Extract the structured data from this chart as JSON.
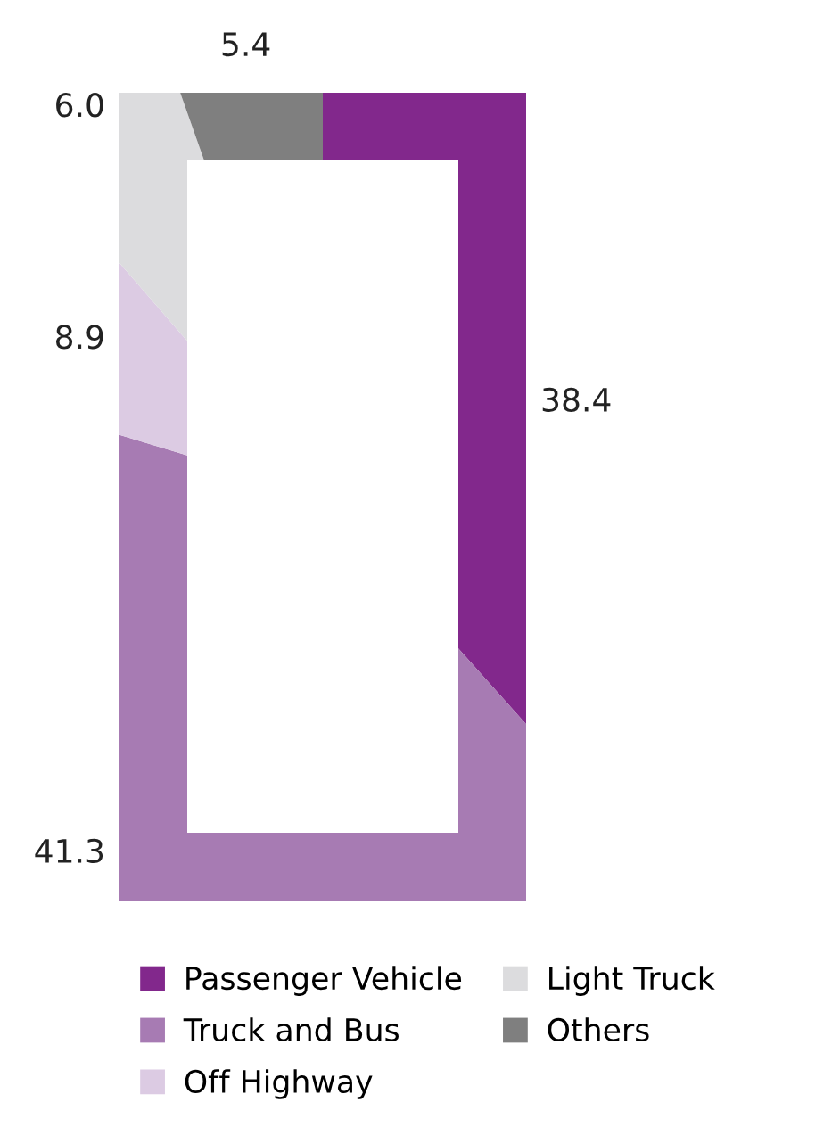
{
  "chart_data": {
    "type": "donut",
    "categories": [
      "Passenger Vehicle",
      "Truck and Bus",
      "Off Highway",
      "Light Truck",
      "Others"
    ],
    "values": [
      38.4,
      41.3,
      8.9,
      6.0,
      5.4
    ],
    "colors": [
      "#82288c",
      "#a77bb3",
      "#dccbe3",
      "#dcdcde",
      "#7f7f7f"
    ],
    "value_labels": [
      "38.4",
      "41.3",
      "8.9",
      "6.0",
      "5.4"
    ],
    "legend": "bottom"
  }
}
